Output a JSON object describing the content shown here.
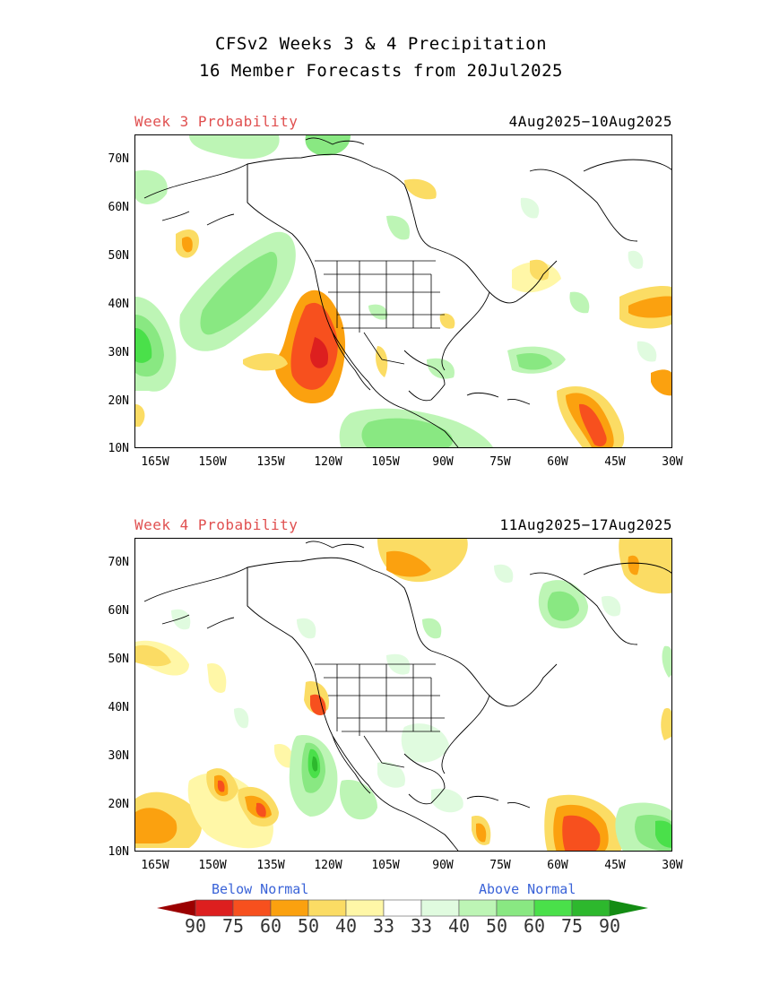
{
  "header": {
    "line1": "CFSv2 Weeks 3 & 4 Precipitation",
    "line2": "16 Member Forecasts from 20Jul2025"
  },
  "panels": [
    {
      "label": "Week 3 Probability",
      "dates": "4Aug2025−10Aug2025"
    },
    {
      "label": "Week 4 Probability",
      "dates": "11Aug2025−17Aug2025"
    }
  ],
  "axes": {
    "lat_labels": [
      "70N",
      "60N",
      "50N",
      "40N",
      "30N",
      "20N",
      "10N"
    ],
    "lon_labels": [
      "165W",
      "150W",
      "135W",
      "120W",
      "105W",
      "90W",
      "75W",
      "60W",
      "45W",
      "30W"
    ],
    "lat_range": [
      10,
      75
    ],
    "lon_range": [
      -170,
      -30
    ]
  },
  "legend": {
    "below_label": "Below Normal",
    "above_label": "Above Normal",
    "values": [
      "90",
      "75",
      "60",
      "50",
      "40",
      "33",
      "33",
      "40",
      "50",
      "60",
      "75",
      "90"
    ],
    "colors": [
      "#9b0000",
      "#dd1f1f",
      "#f7501e",
      "#fba10f",
      "#fbdc64",
      "#fff7a7",
      "#ffffff",
      "#e0fbdf",
      "#bdf5b5",
      "#89e882",
      "#4ae04a",
      "#2db82d",
      "#138c13"
    ]
  },
  "colors": {
    "week_label": "#e05050",
    "below_label": "#3a63d8",
    "above_label": "#3a63d8",
    "land_outline": "#000000"
  }
}
